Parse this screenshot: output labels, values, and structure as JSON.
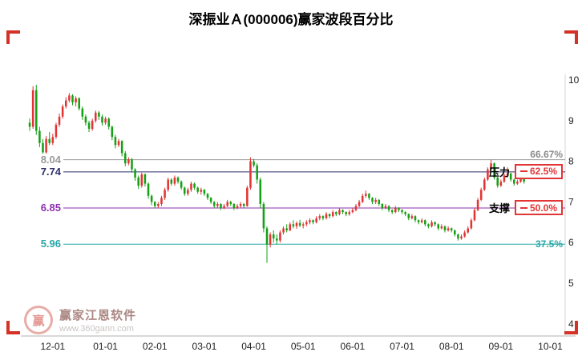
{
  "watermark": {
    "brand": "赢家江恩软件",
    "url": "www.360gann.com",
    "logo_char": "赢"
  },
  "chart_data": {
    "type": "candlestick",
    "title": "深振业Ａ(000006)赢家波段百分比",
    "grid": false,
    "legend": "none",
    "colors": {
      "up": "#e23535",
      "down": "#16a016",
      "axis": "#b0b0b0",
      "tick_text": "#222222"
    },
    "y_axis": {
      "side": "right",
      "ticks": [
        10,
        9,
        8,
        7,
        6,
        5,
        4
      ],
      "range": [
        3.7,
        10.1
      ]
    },
    "x_axis": {
      "tick_labels": [
        "12-01",
        "01-01",
        "02-01",
        "03-01",
        "04-01",
        "05-01",
        "06-01",
        "07-01",
        "08-01",
        "09-01",
        "10-01"
      ],
      "tick_slots": [
        7,
        23,
        38,
        53,
        68,
        83,
        98,
        113,
        128,
        143,
        158
      ],
      "total_slots": 163
    },
    "levels": [
      {
        "value": 8.04,
        "price_label": "8.04",
        "pct_label": "66.67%",
        "tag": "",
        "boxed": false,
        "color": "#9a9a9a",
        "pct_color": "#8a8a8a"
      },
      {
        "value": 7.74,
        "price_label": "7.74",
        "pct_label": "62.5%",
        "tag": "压力",
        "boxed": true,
        "color": "#2e2e6b",
        "pct_color": "#e23535"
      },
      {
        "value": 6.85,
        "price_label": "6.85",
        "pct_label": "50.0%",
        "tag": "支撑",
        "boxed": true,
        "color": "#8e2fae",
        "pct_color": "#e23535"
      },
      {
        "value": 5.96,
        "price_label": "5.96",
        "pct_label": "37.5%",
        "tag": "",
        "boxed": false,
        "color": "#2aa7a7",
        "pct_color": "#2aa7a7"
      }
    ],
    "candles": [
      [
        8.95,
        9.05,
        8.75,
        8.85
      ],
      [
        8.85,
        9.85,
        8.8,
        9.75
      ],
      [
        9.75,
        9.88,
        8.65,
        8.75
      ],
      [
        8.75,
        8.85,
        8.35,
        8.45
      ],
      [
        8.45,
        8.55,
        8.12,
        8.22
      ],
      [
        8.22,
        8.62,
        8.18,
        8.55
      ],
      [
        8.55,
        8.72,
        8.4,
        8.45
      ],
      [
        8.45,
        8.68,
        8.4,
        8.6
      ],
      [
        8.6,
        8.95,
        8.55,
        8.9
      ],
      [
        8.9,
        9.18,
        8.85,
        9.1
      ],
      [
        9.1,
        9.4,
        9.05,
        9.35
      ],
      [
        9.35,
        9.58,
        9.3,
        9.5
      ],
      [
        9.5,
        9.68,
        9.45,
        9.62
      ],
      [
        9.62,
        9.65,
        9.38,
        9.45
      ],
      [
        9.45,
        9.6,
        9.35,
        9.55
      ],
      [
        9.55,
        9.58,
        9.25,
        9.3
      ],
      [
        9.3,
        9.35,
        9.02,
        9.1
      ],
      [
        9.1,
        9.15,
        8.88,
        8.95
      ],
      [
        8.95,
        9.0,
        8.72,
        8.8
      ],
      [
        8.8,
        9.05,
        8.75,
        9.0
      ],
      [
        9.0,
        9.25,
        8.95,
        9.2
      ],
      [
        9.2,
        9.24,
        9.02,
        9.1
      ],
      [
        9.1,
        9.15,
        8.88,
        8.95
      ],
      [
        8.95,
        9.1,
        8.9,
        9.05
      ],
      [
        9.05,
        9.08,
        8.78,
        8.85
      ],
      [
        8.85,
        8.88,
        8.52,
        8.6
      ],
      [
        8.6,
        8.65,
        8.32,
        8.4
      ],
      [
        8.4,
        8.55,
        8.35,
        8.5
      ],
      [
        8.5,
        8.52,
        8.12,
        8.2
      ],
      [
        8.2,
        8.25,
        7.88,
        7.95
      ],
      [
        7.95,
        8.1,
        7.9,
        8.05
      ],
      [
        8.05,
        8.08,
        7.72,
        7.8
      ],
      [
        7.8,
        7.83,
        7.52,
        7.6
      ],
      [
        7.6,
        7.65,
        7.32,
        7.4
      ],
      [
        7.4,
        7.72,
        7.35,
        7.68
      ],
      [
        7.68,
        7.7,
        7.38,
        7.45
      ],
      [
        7.45,
        7.48,
        7.08,
        7.15
      ],
      [
        7.15,
        7.18,
        6.92,
        7.0
      ],
      [
        7.0,
        7.02,
        6.84,
        6.9
      ],
      [
        6.9,
        7.0,
        6.85,
        6.95
      ],
      [
        6.95,
        7.15,
        6.9,
        7.1
      ],
      [
        7.1,
        7.35,
        7.05,
        7.3
      ],
      [
        7.3,
        7.6,
        7.25,
        7.55
      ],
      [
        7.55,
        7.58,
        7.4,
        7.45
      ],
      [
        7.45,
        7.65,
        7.4,
        7.6
      ],
      [
        7.6,
        7.63,
        7.45,
        7.5
      ],
      [
        7.5,
        7.53,
        7.3,
        7.35
      ],
      [
        7.35,
        7.38,
        7.15,
        7.2
      ],
      [
        7.2,
        7.35,
        7.15,
        7.3
      ],
      [
        7.3,
        7.5,
        7.25,
        7.45
      ],
      [
        7.45,
        7.48,
        7.3,
        7.35
      ],
      [
        7.35,
        7.38,
        7.2,
        7.25
      ],
      [
        7.25,
        7.35,
        7.18,
        7.3
      ],
      [
        7.3,
        7.32,
        7.15,
        7.2
      ],
      [
        7.2,
        7.22,
        7.05,
        7.1
      ],
      [
        7.1,
        7.12,
        6.95,
        7.0
      ],
      [
        7.0,
        7.02,
        6.85,
        6.9
      ],
      [
        6.9,
        7.0,
        6.86,
        6.95
      ],
      [
        6.95,
        6.97,
        6.8,
        6.85
      ],
      [
        6.85,
        6.95,
        6.82,
        6.9
      ],
      [
        6.9,
        7.05,
        6.87,
        7.0
      ],
      [
        7.0,
        7.03,
        6.9,
        6.95
      ],
      [
        6.95,
        6.97,
        6.8,
        6.85
      ],
      [
        6.85,
        6.95,
        6.82,
        6.9
      ],
      [
        6.9,
        7.0,
        6.86,
        6.95
      ],
      [
        6.95,
        6.97,
        6.85,
        6.9
      ],
      [
        6.9,
        7.4,
        6.88,
        7.35
      ],
      [
        7.35,
        8.1,
        7.3,
        8.0
      ],
      [
        8.0,
        8.06,
        7.85,
        7.9
      ],
      [
        7.9,
        7.95,
        7.45,
        7.55
      ],
      [
        7.55,
        7.6,
        6.85,
        6.95
      ],
      [
        6.95,
        7.0,
        6.25,
        6.35
      ],
      [
        6.35,
        6.4,
        5.5,
        5.95
      ],
      [
        5.95,
        6.25,
        5.88,
        6.2
      ],
      [
        6.2,
        6.3,
        6.0,
        6.1
      ],
      [
        6.1,
        6.2,
        5.95,
        6.05
      ],
      [
        6.05,
        6.3,
        6.0,
        6.25
      ],
      [
        6.25,
        6.4,
        6.2,
        6.35
      ],
      [
        6.35,
        6.45,
        6.25,
        6.3
      ],
      [
        6.3,
        6.5,
        6.28,
        6.45
      ],
      [
        6.45,
        6.55,
        6.35,
        6.4
      ],
      [
        6.4,
        6.52,
        6.34,
        6.48
      ],
      [
        6.48,
        6.56,
        6.38,
        6.42
      ],
      [
        6.42,
        6.5,
        6.35,
        6.45
      ],
      [
        6.45,
        6.55,
        6.4,
        6.5
      ],
      [
        6.5,
        6.6,
        6.45,
        6.55
      ],
      [
        6.55,
        6.57,
        6.45,
        6.5
      ],
      [
        6.5,
        6.65,
        6.47,
        6.6
      ],
      [
        6.6,
        6.7,
        6.55,
        6.65
      ],
      [
        6.65,
        6.67,
        6.55,
        6.6
      ],
      [
        6.6,
        6.75,
        6.57,
        6.7
      ],
      [
        6.7,
        6.72,
        6.6,
        6.65
      ],
      [
        6.65,
        6.8,
        6.62,
        6.75
      ],
      [
        6.75,
        6.77,
        6.65,
        6.7
      ],
      [
        6.7,
        6.85,
        6.67,
        6.8
      ],
      [
        6.8,
        6.82,
        6.7,
        6.75
      ],
      [
        6.75,
        6.77,
        6.65,
        6.7
      ],
      [
        6.7,
        6.8,
        6.66,
        6.75
      ],
      [
        6.75,
        6.85,
        6.72,
        6.8
      ],
      [
        6.8,
        6.95,
        6.77,
        6.9
      ],
      [
        6.9,
        7.05,
        6.87,
        7.0
      ],
      [
        7.0,
        7.2,
        6.97,
        7.15
      ],
      [
        7.15,
        7.28,
        7.1,
        7.2
      ],
      [
        7.2,
        7.22,
        7.05,
        7.1
      ],
      [
        7.1,
        7.12,
        6.95,
        7.0
      ],
      [
        7.0,
        7.1,
        6.95,
        7.05
      ],
      [
        7.05,
        7.07,
        6.9,
        6.95
      ],
      [
        6.95,
        6.97,
        6.8,
        6.85
      ],
      [
        6.85,
        6.95,
        6.82,
        6.9
      ],
      [
        6.9,
        6.92,
        6.75,
        6.8
      ],
      [
        6.8,
        6.82,
        6.7,
        6.75
      ],
      [
        6.75,
        6.9,
        6.72,
        6.85
      ],
      [
        6.85,
        6.87,
        6.75,
        6.8
      ],
      [
        6.8,
        6.82,
        6.7,
        6.75
      ],
      [
        6.75,
        6.77,
        6.65,
        6.7
      ],
      [
        6.7,
        6.72,
        6.55,
        6.6
      ],
      [
        6.6,
        6.7,
        6.57,
        6.65
      ],
      [
        6.65,
        6.67,
        6.5,
        6.55
      ],
      [
        6.55,
        6.57,
        6.45,
        6.5
      ],
      [
        6.5,
        6.6,
        6.47,
        6.55
      ],
      [
        6.55,
        6.57,
        6.4,
        6.45
      ],
      [
        6.45,
        6.47,
        6.35,
        6.4
      ],
      [
        6.4,
        6.55,
        6.37,
        6.5
      ],
      [
        6.5,
        6.52,
        6.4,
        6.45
      ],
      [
        6.45,
        6.47,
        6.3,
        6.35
      ],
      [
        6.35,
        6.45,
        6.32,
        6.4
      ],
      [
        6.4,
        6.42,
        6.25,
        6.3
      ],
      [
        6.3,
        6.4,
        6.27,
        6.35
      ],
      [
        6.35,
        6.37,
        6.25,
        6.3
      ],
      [
        6.3,
        6.32,
        6.15,
        6.2
      ],
      [
        6.2,
        6.22,
        6.05,
        6.1
      ],
      [
        6.1,
        6.2,
        6.07,
        6.15
      ],
      [
        6.15,
        6.3,
        6.12,
        6.25
      ],
      [
        6.25,
        6.4,
        6.22,
        6.35
      ],
      [
        6.35,
        6.6,
        6.32,
        6.55
      ],
      [
        6.55,
        6.85,
        6.52,
        6.8
      ],
      [
        6.8,
        7.1,
        6.77,
        7.05
      ],
      [
        7.05,
        7.35,
        7.02,
        7.3
      ],
      [
        7.3,
        7.6,
        7.27,
        7.55
      ],
      [
        7.55,
        7.85,
        7.52,
        7.8
      ],
      [
        7.8,
        8.04,
        7.75,
        7.95
      ],
      [
        7.95,
        7.97,
        7.55,
        7.6
      ],
      [
        7.6,
        7.62,
        7.35,
        7.4
      ],
      [
        7.4,
        7.55,
        7.37,
        7.5
      ],
      [
        7.5,
        7.7,
        7.47,
        7.65
      ],
      [
        7.65,
        7.85,
        7.6,
        7.7
      ],
      [
        7.7,
        7.72,
        7.5,
        7.55
      ],
      [
        7.55,
        7.57,
        7.4,
        7.45
      ],
      [
        7.45,
        7.55,
        7.42,
        7.5
      ],
      [
        7.5,
        7.65,
        7.47,
        7.6
      ],
      [
        7.6,
        7.62,
        7.45,
        7.5
      ]
    ]
  }
}
